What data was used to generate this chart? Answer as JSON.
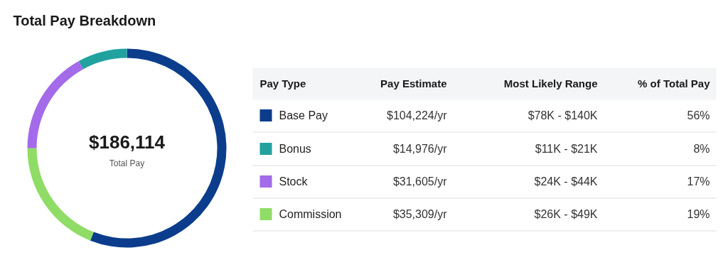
{
  "chart_data": {
    "type": "donut",
    "title": "Total Pay Breakdown",
    "categories": [
      "Base Pay",
      "Bonus",
      "Stock",
      "Commission"
    ],
    "values": [
      104224,
      14976,
      31605,
      35309
    ],
    "legend": "right",
    "colors": [
      "#0b3d8c",
      "#21a29f",
      "#a36ae9",
      "#8fdc66"
    ],
    "value_labels": [
      "$104,224/yr",
      "$14,976/yr",
      "$31,605/yr",
      "$35,309/yr"
    ],
    "annotations": [
      "$186,114",
      "Total Pay",
      "Pay Type",
      "Pay Estimate",
      "Most Likely Range",
      "% of Total Pay",
      "$78K - $140K",
      "$11K - $21K",
      "$24K - $44K",
      "$26K - $49K",
      "56%",
      "8%",
      "17%",
      "19%"
    ]
  }
}
